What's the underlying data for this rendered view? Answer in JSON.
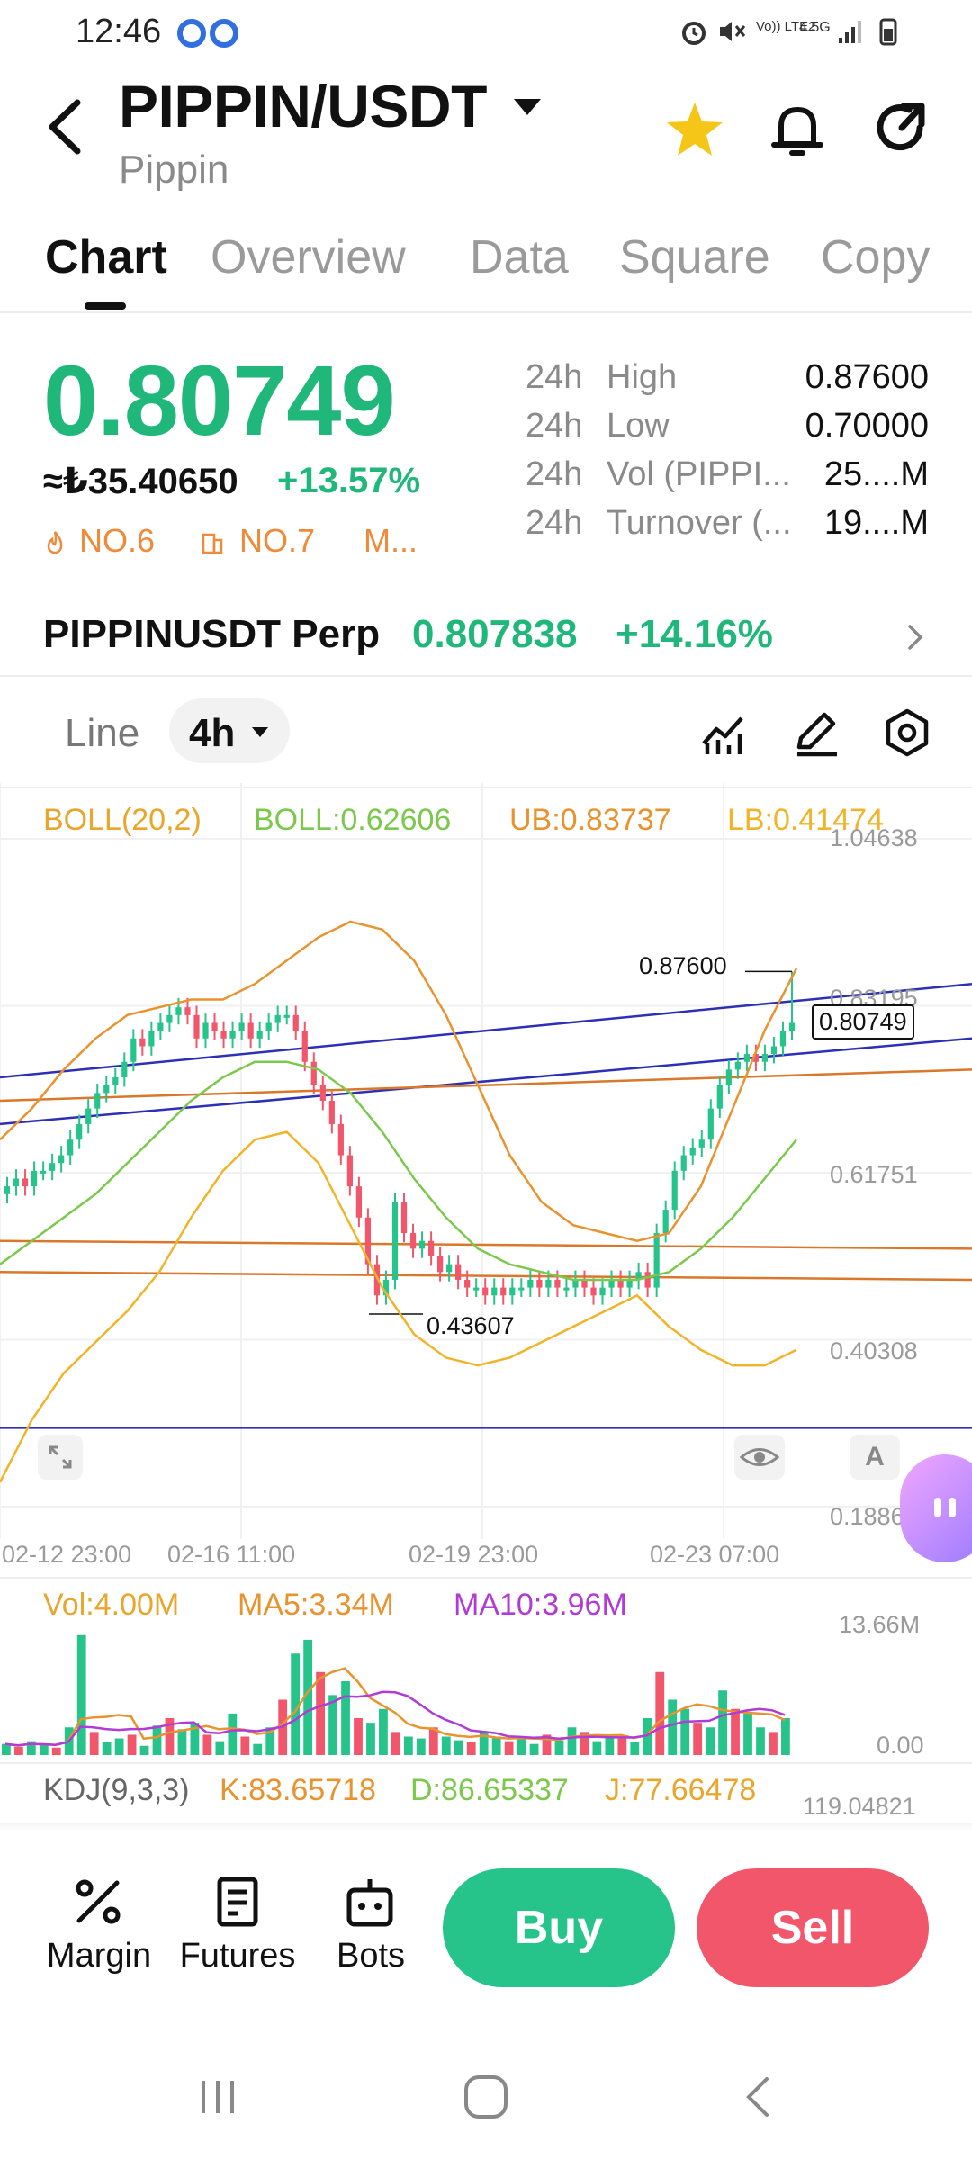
{
  "status_bar": {
    "time": "12:46",
    "network_label": "Vo)) LTE2",
    "net_type": "4.5G"
  },
  "header": {
    "pair": "PIPPIN/USDT",
    "subtitle": "Pippin"
  },
  "tabs": [
    "Chart",
    "Overview",
    "Data",
    "Square",
    "Copy"
  ],
  "price": {
    "last": "0.80749",
    "local": "≈₺35.40650",
    "change": "+13.57%",
    "rank1": "NO.6",
    "rank2": "NO.7",
    "rank3": "M..."
  },
  "stats": [
    {
      "period": "24h",
      "label": "High",
      "value": "0.87600"
    },
    {
      "period": "24h",
      "label": "Low",
      "value": "0.70000"
    },
    {
      "period": "24h",
      "label": "Vol (PIPPI...",
      "value": "25....M"
    },
    {
      "period": "24h",
      "label": "Turnover (...",
      "value": "19....M"
    }
  ],
  "perp": {
    "name": "PIPPINUSDT Perp",
    "price": "0.807838",
    "change": "+14.16%"
  },
  "chart_toolbar": {
    "line_label": "Line",
    "timeframe": "4h"
  },
  "indicators": {
    "boll_name": "BOLL(20,2)",
    "boll_mid": "BOLL:0.62606",
    "ub": "UB:0.83737",
    "lb": "LB:0.41474",
    "vol": "Vol:4.00M",
    "ma5": "MA5:3.34M",
    "ma10": "MA10:3.96M",
    "kdj_name": "KDJ(9,3,3)",
    "k": "K:83.65718",
    "d": "D:86.65337",
    "j": "J:77.66478"
  },
  "price_axis": [
    "1.04638",
    "0.83195",
    "0.61751",
    "0.40308",
    "0.18864"
  ],
  "vol_axis": [
    "13.66M",
    "0.00"
  ],
  "kdj_axis": "119.04821",
  "time_axis": [
    "02-12 23:00",
    "02-16 11:00",
    "02-19 23:00",
    "02-23 07:00"
  ],
  "annotations": {
    "high": "0.87600",
    "low": "0.43607",
    "last": "0.80749"
  },
  "axis_button": "A",
  "colors": {
    "up": "#26c48a",
    "down": "#f2566b",
    "boll_upper": "#e8932e",
    "boll_mid": "#7cc84c",
    "boll_lower": "#f0b429",
    "trendline": "#2d2fb5"
  },
  "bottom_bar": {
    "margin": "Margin",
    "futures": "Futures",
    "bots": "Bots",
    "buy": "Buy",
    "sell": "Sell"
  },
  "chart_data": {
    "type": "candlestick",
    "interval": "4h",
    "ylim": [
      0.18864,
      1.04638
    ],
    "y_ticks": [
      1.04638,
      0.83195,
      0.61751,
      0.40308,
      0.18864
    ],
    "x_ticks": [
      "02-12 23:00",
      "02-16 11:00",
      "02-19 23:00",
      "02-23 07:00"
    ],
    "close_series": [
      0.6,
      0.61,
      0.6,
      0.62,
      0.62,
      0.63,
      0.64,
      0.66,
      0.68,
      0.7,
      0.72,
      0.73,
      0.74,
      0.76,
      0.79,
      0.78,
      0.8,
      0.81,
      0.82,
      0.83,
      0.82,
      0.79,
      0.81,
      0.8,
      0.79,
      0.8,
      0.81,
      0.79,
      0.8,
      0.81,
      0.82,
      0.82,
      0.8,
      0.76,
      0.73,
      0.71,
      0.68,
      0.64,
      0.6,
      0.56,
      0.5,
      0.46,
      0.48,
      0.58,
      0.54,
      0.52,
      0.53,
      0.51,
      0.49,
      0.5,
      0.48,
      0.47,
      0.47,
      0.46,
      0.47,
      0.46,
      0.47,
      0.47,
      0.48,
      0.47,
      0.48,
      0.47,
      0.47,
      0.48,
      0.47,
      0.46,
      0.47,
      0.48,
      0.47,
      0.48,
      0.49,
      0.47,
      0.54,
      0.57,
      0.62,
      0.64,
      0.65,
      0.66,
      0.7,
      0.73,
      0.75,
      0.76,
      0.77,
      0.76,
      0.77,
      0.78,
      0.8,
      0.81
    ],
    "boll_upper": [
      0.66,
      0.7,
      0.75,
      0.79,
      0.82,
      0.83,
      0.84,
      0.84,
      0.86,
      0.89,
      0.92,
      0.94,
      0.93,
      0.89,
      0.82,
      0.73,
      0.64,
      0.58,
      0.55,
      0.54,
      0.53,
      0.54,
      0.6,
      0.7,
      0.8,
      0.88
    ],
    "boll_mid": [
      0.5,
      0.53,
      0.56,
      0.59,
      0.63,
      0.67,
      0.71,
      0.74,
      0.76,
      0.76,
      0.75,
      0.72,
      0.67,
      0.61,
      0.56,
      0.52,
      0.5,
      0.49,
      0.48,
      0.48,
      0.48,
      0.49,
      0.52,
      0.56,
      0.61,
      0.66
    ],
    "boll_lower": [
      0.22,
      0.3,
      0.36,
      0.4,
      0.44,
      0.49,
      0.56,
      0.62,
      0.66,
      0.67,
      0.63,
      0.55,
      0.47,
      0.41,
      0.38,
      0.37,
      0.38,
      0.4,
      0.42,
      0.44,
      0.46,
      0.42,
      0.39,
      0.37,
      0.37,
      0.39
    ],
    "volume_M": [
      1.2,
      0.9,
      1.5,
      1.1,
      0.8,
      3.0,
      13.0,
      2.5,
      1.4,
      1.8,
      2.2,
      1.0,
      3.2,
      4.0,
      2.8,
      3.5,
      2.2,
      1.5,
      4.5,
      2.0,
      1.2,
      3.0,
      6.0,
      11.0,
      12.5,
      9.0,
      6.5,
      8.0,
      4.0,
      3.5,
      5.0,
      2.5,
      2.0,
      1.8,
      3.0,
      2.0,
      1.6,
      1.4,
      2.5,
      2.0,
      1.5,
      1.8,
      1.2,
      2.2,
      1.6,
      3.0,
      2.5,
      1.5,
      2.0,
      1.8,
      1.4,
      4.0,
      9.0,
      6.0,
      5.0,
      3.5,
      3.0,
      7.0,
      5.0,
      4.5,
      3.0,
      2.5,
      4.0
    ]
  }
}
